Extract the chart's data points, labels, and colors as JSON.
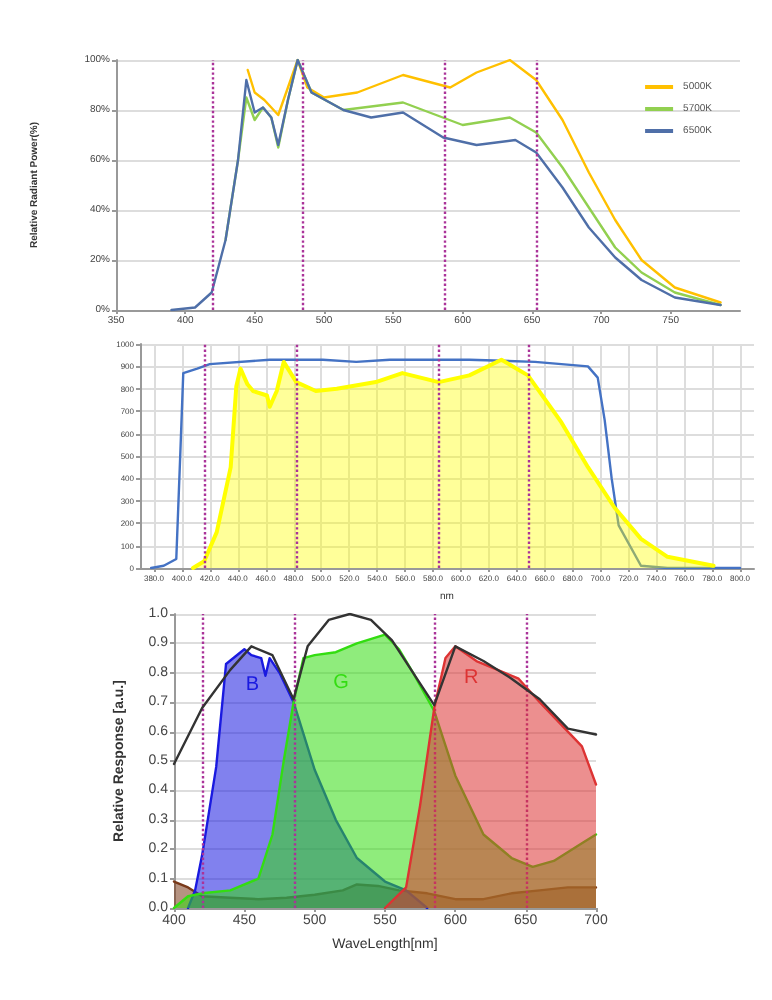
{
  "chart_data": [
    {
      "type": "line",
      "ylabel": "Relative Radiant Power(%)",
      "xlim": [
        350,
        800
      ],
      "xticks": [
        350,
        400,
        450,
        500,
        550,
        600,
        650,
        700,
        750
      ],
      "ylim": [
        0,
        100
      ],
      "yticks": [
        {
          "value": 0,
          "label": "0%"
        },
        {
          "value": 20,
          "label": "20%"
        },
        {
          "value": 40,
          "label": "40%"
        },
        {
          "value": 60,
          "label": "60%"
        },
        {
          "value": 80,
          "label": "80%"
        },
        {
          "value": 100,
          "label": "100%"
        }
      ],
      "grid": "y",
      "legend": "top right",
      "series": [
        {
          "name": "5000K",
          "color": "#ffc000",
          "x": [
            445,
            450,
            457,
            467,
            474,
            481,
            488,
            500,
            524,
            557,
            591,
            610,
            634,
            653,
            672,
            691,
            710,
            729,
            753,
            786
          ],
          "values": [
            96,
            87,
            84,
            78,
            89,
            100,
            89,
            85,
            87,
            94,
            89,
            95,
            100,
            92,
            76,
            55,
            36,
            20,
            9,
            3
          ]
        },
        {
          "name": "5700K",
          "color": "#92d050",
          "x": [
            429,
            438,
            444,
            450,
            456,
            462,
            467,
            474,
            481,
            491,
            514,
            557,
            600,
            634,
            653,
            672,
            691,
            710,
            729,
            753,
            786
          ],
          "values": [
            28,
            60,
            85,
            76,
            81,
            77,
            65,
            84,
            100,
            87,
            80,
            83,
            74,
            77,
            71,
            57,
            41,
            25,
            15,
            7,
            2
          ]
        },
        {
          "name": "6500K",
          "color": "#4f6fa8",
          "x": [
            390,
            407,
            419,
            429,
            438,
            444,
            450,
            456,
            462,
            467,
            474,
            481,
            491,
            514,
            534,
            557,
            586,
            610,
            638,
            653,
            672,
            691,
            710,
            729,
            753,
            786
          ],
          "values": [
            0,
            1,
            7,
            28,
            60,
            92,
            79,
            81,
            77,
            66,
            84,
            100,
            87,
            80,
            77,
            79,
            69,
            66,
            68,
            63,
            49,
            33,
            21,
            12,
            5,
            2
          ]
        }
      ],
      "ref_lines": [
        {
          "axis": "x",
          "value": 420,
          "color": "#aa3399",
          "line_style": "dotted"
        },
        {
          "axis": "x",
          "value": 485,
          "color": "#aa3399",
          "line_style": "dotted"
        },
        {
          "axis": "x",
          "value": 587,
          "color": "#aa3399",
          "line_style": "dotted"
        },
        {
          "axis": "x",
          "value": 653,
          "color": "#aa3399",
          "line_style": "dotted"
        }
      ]
    },
    {
      "type": "area",
      "xlabel": "nm",
      "xlim": [
        370,
        810
      ],
      "xticks": [
        {
          "value": 380,
          "label": "380.0"
        },
        {
          "value": 400,
          "label": "400.0"
        },
        {
          "value": 420,
          "label": "420.0"
        },
        {
          "value": 440,
          "label": "440.0"
        },
        {
          "value": 460,
          "label": "460.0"
        },
        {
          "value": 480,
          "label": "480.0"
        },
        {
          "value": 500,
          "label": "500.0"
        },
        {
          "value": 520,
          "label": "520.0"
        },
        {
          "value": 540,
          "label": "540.0"
        },
        {
          "value": 560,
          "label": "560.0"
        },
        {
          "value": 580,
          "label": "580.0"
        },
        {
          "value": 600,
          "label": "600.0"
        },
        {
          "value": 620,
          "label": "620.0"
        },
        {
          "value": 640,
          "label": "640.0"
        },
        {
          "value": 660,
          "label": "660.0"
        },
        {
          "value": 680,
          "label": "680.0"
        },
        {
          "value": 700,
          "label": "700.0"
        },
        {
          "value": 720,
          "label": "720.0"
        },
        {
          "value": 740,
          "label": "740.0"
        },
        {
          "value": 760,
          "label": "760.0"
        },
        {
          "value": 780,
          "label": "780.0"
        },
        {
          "value": 800,
          "label": "800.0"
        }
      ],
      "ylim": [
        0,
        1000
      ],
      "yticks": [
        0,
        100,
        200,
        300,
        400,
        500,
        600,
        700,
        800,
        900,
        1000
      ],
      "grid": true,
      "series": [
        {
          "type": "line",
          "color": "#4472c4",
          "x": [
            378,
            387,
            396,
            399,
            401,
            411,
            420,
            463,
            501,
            525,
            549,
            606,
            653,
            691,
            698,
            703,
            708,
            713,
            729,
            748,
            800
          ],
          "values": [
            0,
            10,
            40,
            530,
            870,
            890,
            910,
            930,
            930,
            920,
            930,
            930,
            920,
            900,
            850,
            660,
            400,
            190,
            10,
            0,
            0
          ]
        },
        {
          "color": "#ffff00",
          "x": [
            408,
            416,
            425,
            435,
            439,
            442,
            447,
            451,
            461,
            463,
            468,
            473,
            482,
            496,
            511,
            539,
            558,
            584,
            606,
            629,
            648,
            672,
            691,
            710,
            729,
            748,
            781
          ],
          "values": [
            0,
            30,
            160,
            450,
            810,
            890,
            820,
            790,
            770,
            720,
            790,
            920,
            830,
            790,
            800,
            830,
            870,
            830,
            860,
            930,
            860,
            650,
            450,
            270,
            130,
            50,
            10
          ]
        }
      ],
      "ref_lines": [
        {
          "axis": "x",
          "value": 416,
          "color": "#aa3399",
          "line_style": "dotted"
        },
        {
          "axis": "x",
          "value": 482,
          "color": "#aa3399",
          "line_style": "dotted"
        },
        {
          "axis": "x",
          "value": 584,
          "color": "#aa3399",
          "line_style": "dotted"
        },
        {
          "axis": "x",
          "value": 648,
          "color": "#aa3399",
          "line_style": "dotted"
        }
      ]
    },
    {
      "type": "area",
      "xlabel": "WaveLength[nm]",
      "ylabel": "Relative Response [a.u.]",
      "xlim": [
        400,
        700
      ],
      "xticks": [
        400,
        450,
        500,
        550,
        600,
        650,
        700
      ],
      "ylim": [
        0,
        1
      ],
      "yticks": [
        {
          "value": 0,
          "label": "0.0"
        },
        {
          "value": 0.1,
          "label": "0.1"
        },
        {
          "value": 0.2,
          "label": "0.2"
        },
        {
          "value": 0.3,
          "label": "0.3"
        },
        {
          "value": 0.4,
          "label": "0.4"
        },
        {
          "value": 0.5,
          "label": "0.5"
        },
        {
          "value": 0.6,
          "label": "0.6"
        },
        {
          "value": 0.7,
          "label": "0.7"
        },
        {
          "value": 0.8,
          "label": "0.8"
        },
        {
          "value": 0.9,
          "label": "0.9"
        },
        {
          "value": 1,
          "label": "1.0"
        }
      ],
      "grid": "y",
      "series": [
        {
          "type": "area",
          "color": "#7a3a1a",
          "x": [
            400,
            410,
            420,
            440,
            460,
            480,
            500,
            520,
            530,
            545,
            560,
            580,
            600,
            620,
            640,
            660,
            680,
            700
          ],
          "values": [
            0.09,
            0.07,
            0.04,
            0.035,
            0.03,
            0.035,
            0.045,
            0.06,
            0.08,
            0.075,
            0.06,
            0.05,
            0.03,
            0.03,
            0.05,
            0.06,
            0.07,
            0.07
          ]
        },
        {
          "name": "B",
          "color": "#1a1ae0",
          "x": [
            410,
            415,
            420,
            430,
            437,
            450,
            455,
            462,
            465,
            468,
            475,
            485,
            500,
            515,
            530,
            550,
            565,
            580
          ],
          "values": [
            0,
            0.06,
            0.18,
            0.48,
            0.83,
            0.88,
            0.86,
            0.85,
            0.79,
            0.85,
            0.8,
            0.7,
            0.47,
            0.3,
            0.17,
            0.09,
            0.06,
            0
          ]
        },
        {
          "name": "G",
          "color": "#33dd11",
          "x": [
            400,
            410,
            420,
            440,
            460,
            470,
            478,
            485,
            492,
            500,
            515,
            530,
            550,
            560,
            570,
            585,
            600,
            620,
            640,
            655,
            670,
            690,
            700
          ],
          "values": [
            0,
            0.04,
            0.05,
            0.06,
            0.1,
            0.25,
            0.5,
            0.7,
            0.85,
            0.86,
            0.87,
            0.9,
            0.93,
            0.88,
            0.8,
            0.67,
            0.45,
            0.25,
            0.17,
            0.14,
            0.16,
            0.22,
            0.25
          ]
        },
        {
          "name": "R",
          "color": "#dd3333",
          "x": [
            550,
            565,
            575,
            585,
            593,
            600,
            615,
            630,
            645,
            660,
            680,
            690,
            700
          ],
          "values": [
            0,
            0.07,
            0.35,
            0.68,
            0.85,
            0.89,
            0.84,
            0.81,
            0.78,
            0.7,
            0.6,
            0.55,
            0.42
          ]
        },
        {
          "type": "line",
          "color": "#333333",
          "x": [
            400,
            420,
            440,
            455,
            470,
            485,
            495,
            510,
            525,
            540,
            555,
            570,
            585,
            600,
            620,
            640,
            660,
            680,
            700
          ],
          "values": [
            0.49,
            0.68,
            0.81,
            0.89,
            0.86,
            0.71,
            0.89,
            0.98,
            1,
            0.98,
            0.91,
            0.8,
            0.69,
            0.89,
            0.84,
            0.78,
            0.71,
            0.61,
            0.59
          ]
        }
      ],
      "ref_lines": [
        {
          "axis": "x",
          "value": 420,
          "color": "#aa3399",
          "line_style": "dotted"
        },
        {
          "axis": "x",
          "value": 485,
          "color": "#aa3399",
          "line_style": "dotted"
        },
        {
          "axis": "x",
          "value": 585,
          "color": "#aa3399",
          "line_style": "dotted"
        },
        {
          "axis": "x",
          "value": 650,
          "color": "#aa3399",
          "line_style": "dotted"
        }
      ]
    }
  ]
}
